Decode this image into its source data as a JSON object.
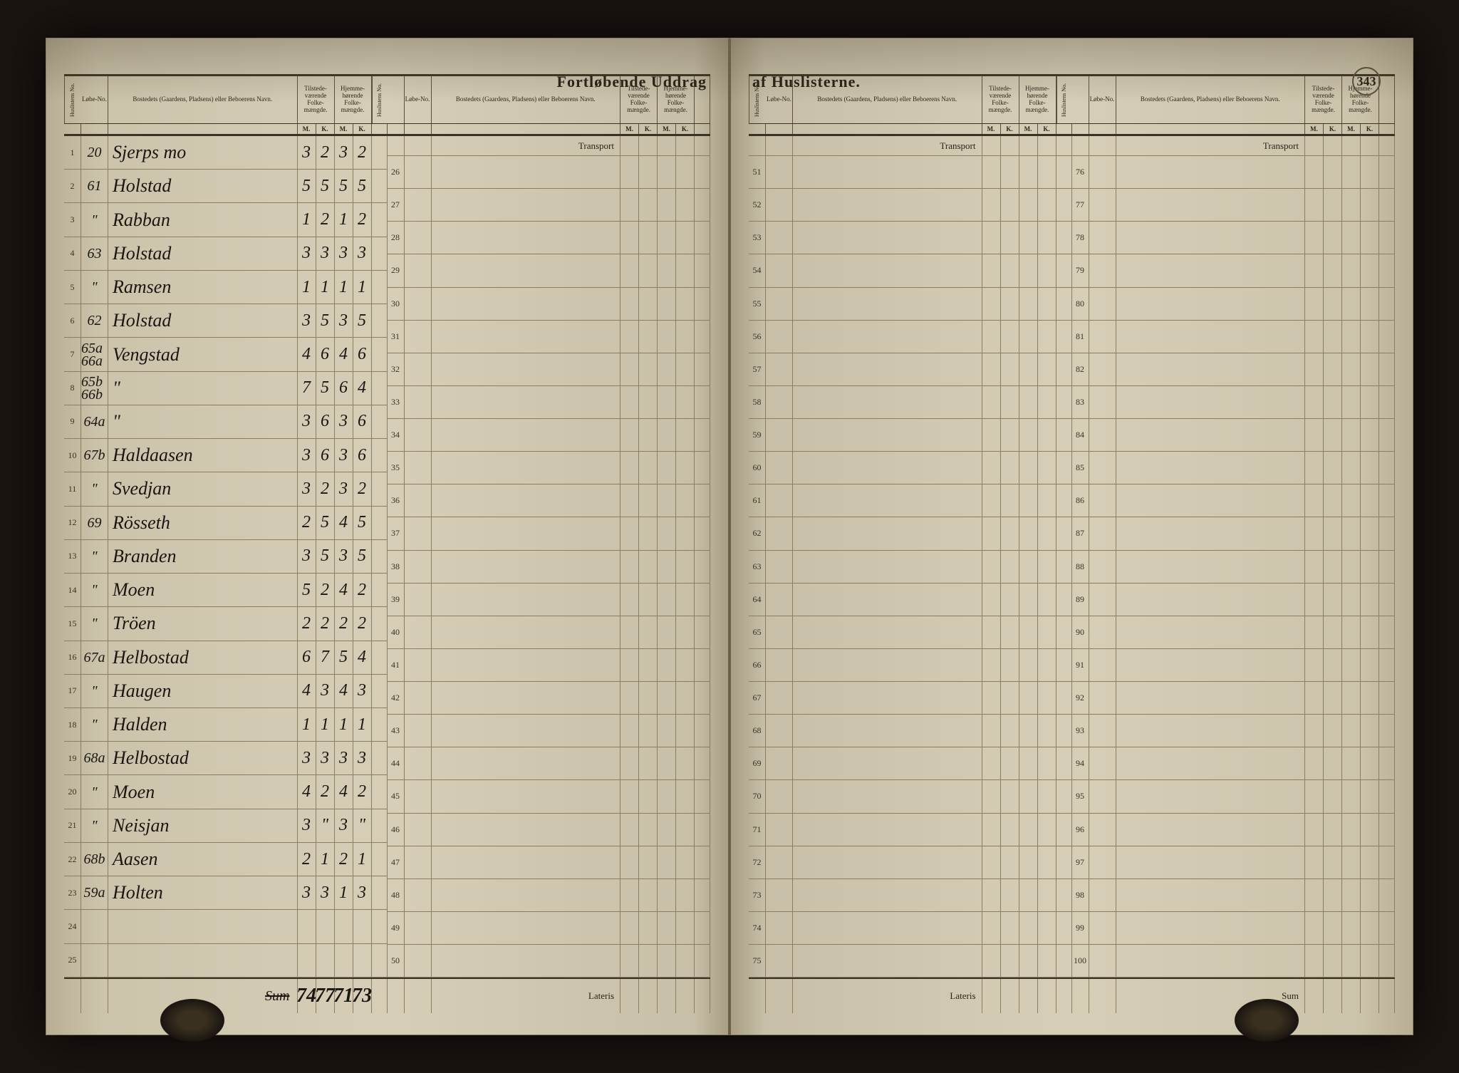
{
  "title_left": "Fortløbende Uddrag",
  "title_right": "af Huslisterne.",
  "page_number": "343",
  "headers": {
    "huslist": "Huslistens No.",
    "lobe": "Løbe-No.",
    "bosted": "Bostedets (Gaardens, Pladsens) eller Beboerens Navn.",
    "tilstede": "Tilstede-værende Folke-mængde.",
    "hjemme": "Hjemme-hørende Folke-mængde.",
    "M": "M.",
    "K": "K."
  },
  "transport": "Transport",
  "lateris": "Lateris",
  "sum_text": "Sum",
  "sum_label": "Sum",
  "block1": {
    "rows": [
      {
        "n": "1",
        "lobe": "20",
        "name": "Sjerps mo",
        "m1": "3",
        "k1": "2",
        "m2": "3",
        "k2": "2"
      },
      {
        "n": "2",
        "lobe": "61",
        "name": "Holstad",
        "m1": "5",
        "k1": "5",
        "m2": "5",
        "k2": "5"
      },
      {
        "n": "3",
        "lobe": "\"",
        "name": "Rabban",
        "m1": "1",
        "k1": "2",
        "m2": "1",
        "k2": "2"
      },
      {
        "n": "4",
        "lobe": "63",
        "name": "Holstad",
        "m1": "3",
        "k1": "3",
        "m2": "3",
        "k2": "3"
      },
      {
        "n": "5",
        "lobe": "\"",
        "name": "Ramsen",
        "m1": "1",
        "k1": "1",
        "m2": "1",
        "k2": "1"
      },
      {
        "n": "6",
        "lobe": "62",
        "name": "Holstad",
        "m1": "3",
        "k1": "5",
        "m2": "3",
        "k2": "5"
      },
      {
        "n": "7",
        "lobe": "65a 66a",
        "name": "Vengstad",
        "m1": "4",
        "k1": "6",
        "m2": "4",
        "k2": "6"
      },
      {
        "n": "8",
        "lobe": "65b 66b",
        "name": "\"",
        "m1": "7",
        "k1": "5",
        "m2": "6",
        "k2": "4"
      },
      {
        "n": "9",
        "lobe": "64a",
        "name": "\"",
        "m1": "3",
        "k1": "6",
        "m2": "3",
        "k2": "6"
      },
      {
        "n": "10",
        "lobe": "67b",
        "name": "Haldaasen",
        "m1": "3",
        "k1": "6",
        "m2": "3",
        "k2": "6"
      },
      {
        "n": "11",
        "lobe": "\"",
        "name": "Svedjan",
        "m1": "3",
        "k1": "2",
        "m2": "3",
        "k2": "2"
      },
      {
        "n": "12",
        "lobe": "69",
        "name": "Rösseth",
        "m1": "2",
        "k1": "5",
        "m2": "4",
        "k2": "5"
      },
      {
        "n": "13",
        "lobe": "\"",
        "name": "Branden",
        "m1": "3",
        "k1": "5",
        "m2": "3",
        "k2": "5"
      },
      {
        "n": "14",
        "lobe": "\"",
        "name": "Moen",
        "m1": "5",
        "k1": "2",
        "m2": "4",
        "k2": "2"
      },
      {
        "n": "15",
        "lobe": "\"",
        "name": "Tröen",
        "m1": "2",
        "k1": "2",
        "m2": "2",
        "k2": "2"
      },
      {
        "n": "16",
        "lobe": "67a",
        "name": "Helbostad",
        "m1": "6",
        "k1": "7",
        "m2": "5",
        "k2": "4"
      },
      {
        "n": "17",
        "lobe": "\"",
        "name": "Haugen",
        "m1": "4",
        "k1": "3",
        "m2": "4",
        "k2": "3"
      },
      {
        "n": "18",
        "lobe": "\"",
        "name": "Halden",
        "m1": "1",
        "k1": "1",
        "m2": "1",
        "k2": "1"
      },
      {
        "n": "19",
        "lobe": "68a",
        "name": "Helbostad",
        "m1": "3",
        "k1": "3",
        "m2": "3",
        "k2": "3"
      },
      {
        "n": "20",
        "lobe": "\"",
        "name": "Moen",
        "m1": "4",
        "k1": "2",
        "m2": "4",
        "k2": "2"
      },
      {
        "n": "21",
        "lobe": "\"",
        "name": "Neisjan",
        "m1": "3",
        "k1": "\"",
        "m2": "3",
        "k2": "\""
      },
      {
        "n": "22",
        "lobe": "68b",
        "name": "Aasen",
        "m1": "2",
        "k1": "1",
        "m2": "2",
        "k2": "1"
      },
      {
        "n": "23",
        "lobe": "59a",
        "name": "Holten",
        "m1": "3",
        "k1": "3",
        "m2": "1",
        "k2": "3"
      },
      {
        "n": "24",
        "lobe": "",
        "name": "",
        "m1": "",
        "k1": "",
        "m2": "",
        "k2": ""
      },
      {
        "n": "25",
        "lobe": "",
        "name": "",
        "m1": "",
        "k1": "",
        "m2": "",
        "k2": ""
      }
    ],
    "sums": {
      "m1": "74",
      "k1": "77",
      "m2": "71",
      "k2": "73"
    }
  },
  "block2": {
    "start": 26,
    "end": 50
  },
  "block3": {
    "start": 51,
    "end": 75
  },
  "block4": {
    "start": 76,
    "end": 100
  },
  "colors": {
    "ink": "#1a1510",
    "print": "#2a2518",
    "rule": "#5a4f38",
    "paper_light": "#d6ceb7",
    "paper_dark": "#b8ae95"
  }
}
